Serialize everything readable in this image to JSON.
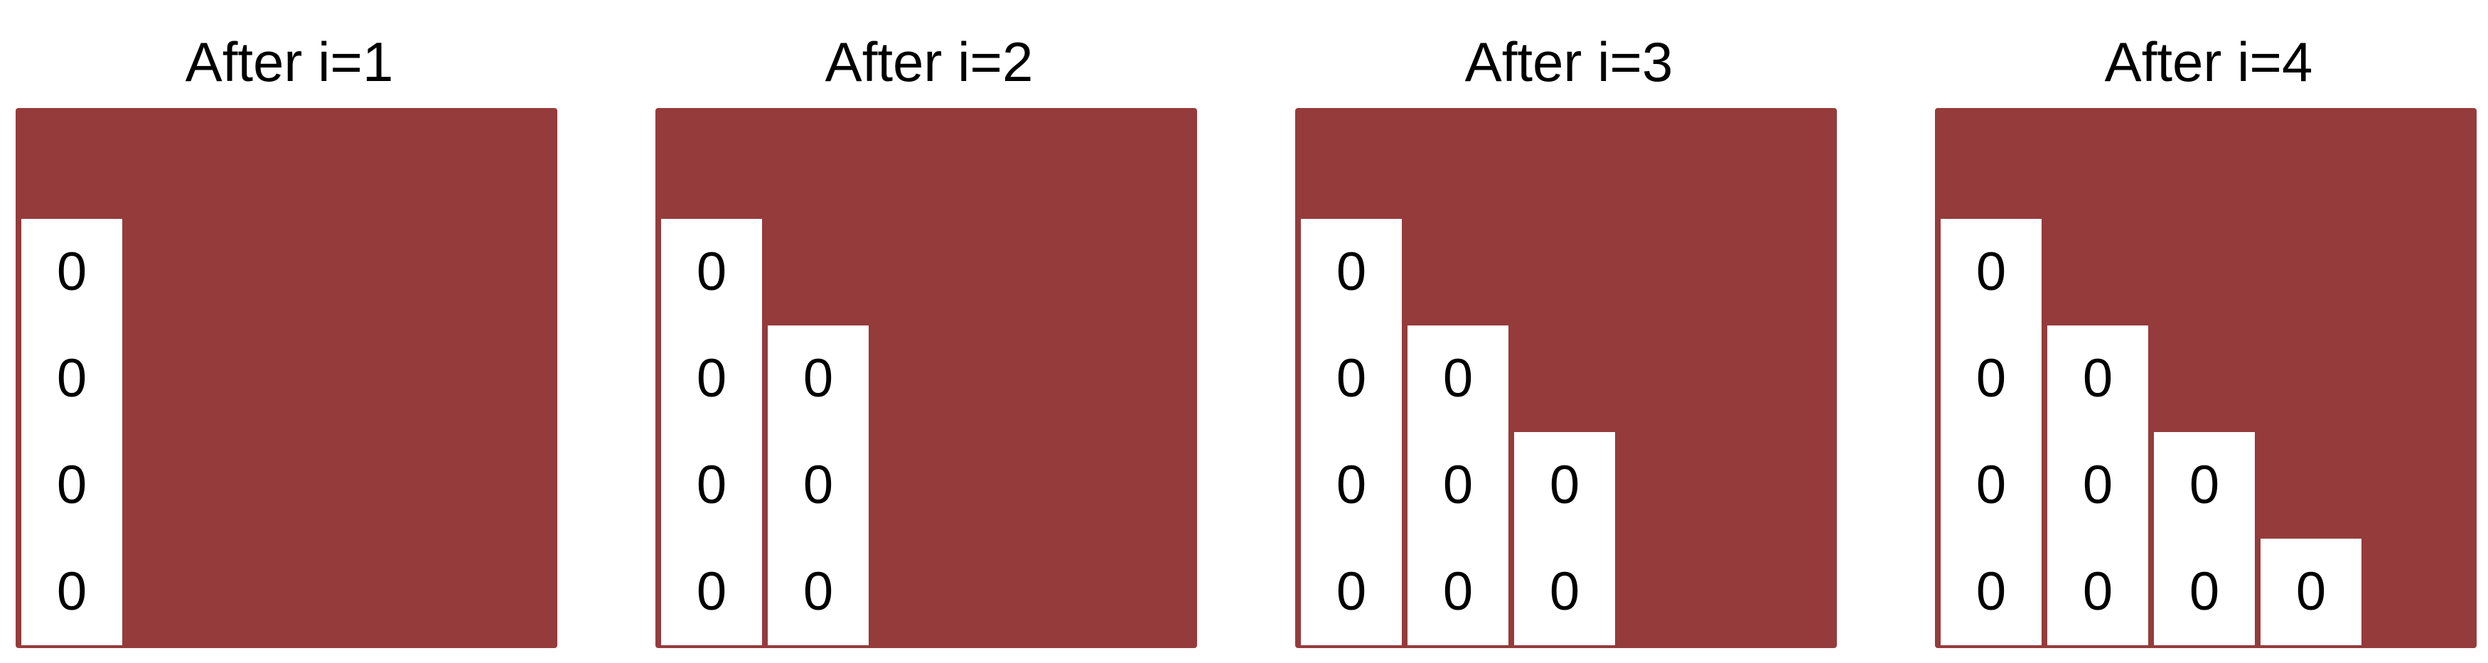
{
  "colors": {
    "matrix_fill": "#953b3b",
    "cell_fill": "#ffffff",
    "text": "#000000"
  },
  "panels": [
    {
      "title": "After i=1",
      "columns": [
        [
          "0",
          "0",
          "0",
          "0"
        ]
      ]
    },
    {
      "title": "After i=2",
      "columns": [
        [
          "0",
          "0",
          "0",
          "0"
        ],
        [
          "0",
          "0",
          "0"
        ]
      ]
    },
    {
      "title": "After i=3",
      "columns": [
        [
          "0",
          "0",
          "0",
          "0"
        ],
        [
          "0",
          "0",
          "0"
        ],
        [
          "0",
          "0"
        ]
      ]
    },
    {
      "title": "After i=4",
      "columns": [
        [
          "0",
          "0",
          "0",
          "0"
        ],
        [
          "0",
          "0",
          "0"
        ],
        [
          "0",
          "0"
        ],
        [
          "0"
        ]
      ]
    }
  ]
}
